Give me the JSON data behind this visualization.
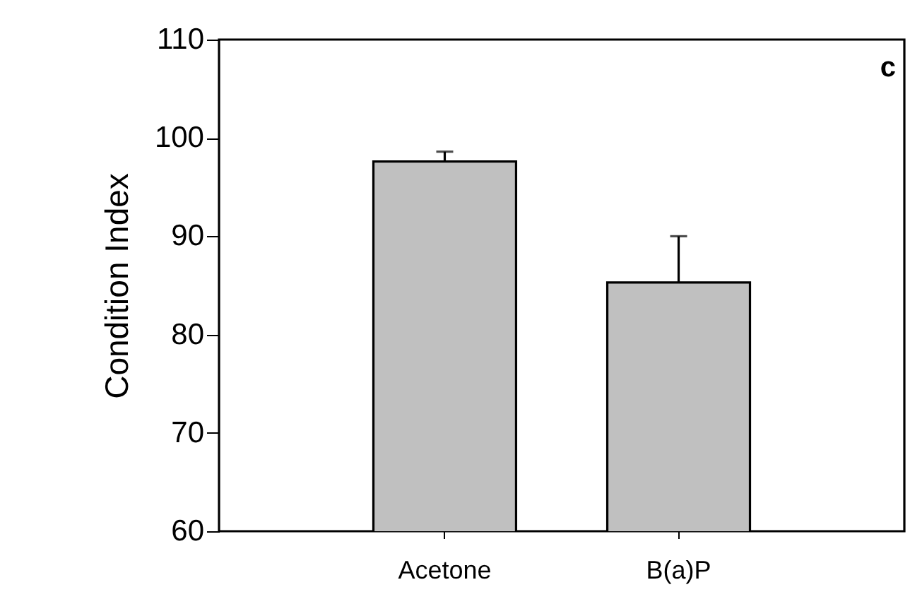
{
  "chart_data": {
    "type": "bar",
    "ylabel": "Condition Index",
    "categories": [
      "Acetone",
      "B(a)P"
    ],
    "values": [
      97.6,
      85.3
    ],
    "errors": [
      1.0,
      4.7
    ],
    "color": "#c0c0c0",
    "ylim": [
      60,
      110
    ],
    "yticks": [
      60,
      70,
      80,
      90,
      100,
      110
    ],
    "grid": false,
    "annotations": [
      "c"
    ]
  }
}
